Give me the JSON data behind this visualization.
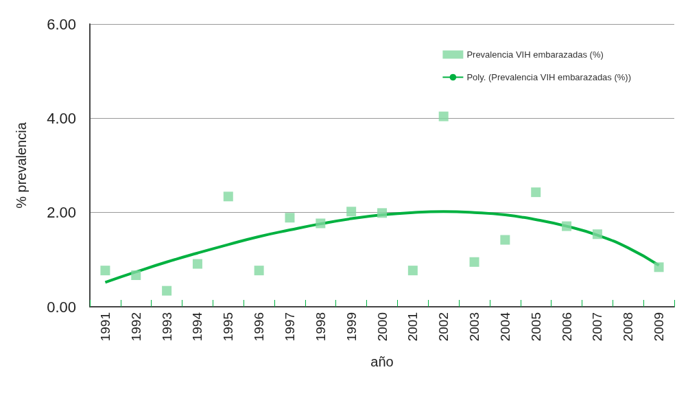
{
  "chart_data": {
    "type": "scatter",
    "xlabel": "año",
    "ylabel": "% prevalencia",
    "categories": [
      "1991",
      "1992",
      "1993",
      "1994",
      "1995",
      "1996",
      "1997",
      "1998",
      "1999",
      "2000",
      "2001",
      "2002",
      "2003",
      "2004",
      "2005",
      "2006",
      "2007",
      "2008",
      "2009"
    ],
    "series": [
      {
        "name": "Prevalencia VIH embarazadas (%)",
        "color": "#82d8a0",
        "marker": "square",
        "values": [
          0.77,
          0.67,
          0.34,
          0.91,
          2.34,
          0.77,
          1.89,
          1.77,
          2.02,
          1.99,
          0.77,
          4.04,
          0.95,
          1.42,
          2.43,
          1.71,
          1.54,
          null,
          0.84
        ]
      },
      {
        "name": "Poly. (Prevalencia VIH embarazadas (%))",
        "type": "line",
        "color": "#00b140",
        "marker": "none",
        "values": [
          0.52,
          0.74,
          0.95,
          1.14,
          1.32,
          1.49,
          1.63,
          1.76,
          1.87,
          1.95,
          2.0,
          2.02,
          2.0,
          1.95,
          1.85,
          1.71,
          1.52,
          1.25,
          0.88
        ]
      }
    ],
    "ylim": [
      0,
      6
    ],
    "yticks": [
      {
        "value": 0,
        "label": "0.00"
      },
      {
        "value": 2,
        "label": "2.00"
      },
      {
        "value": 4,
        "label": "4.00"
      },
      {
        "value": 6,
        "label": "6.00"
      }
    ],
    "grid": "y",
    "legend": "top right"
  }
}
